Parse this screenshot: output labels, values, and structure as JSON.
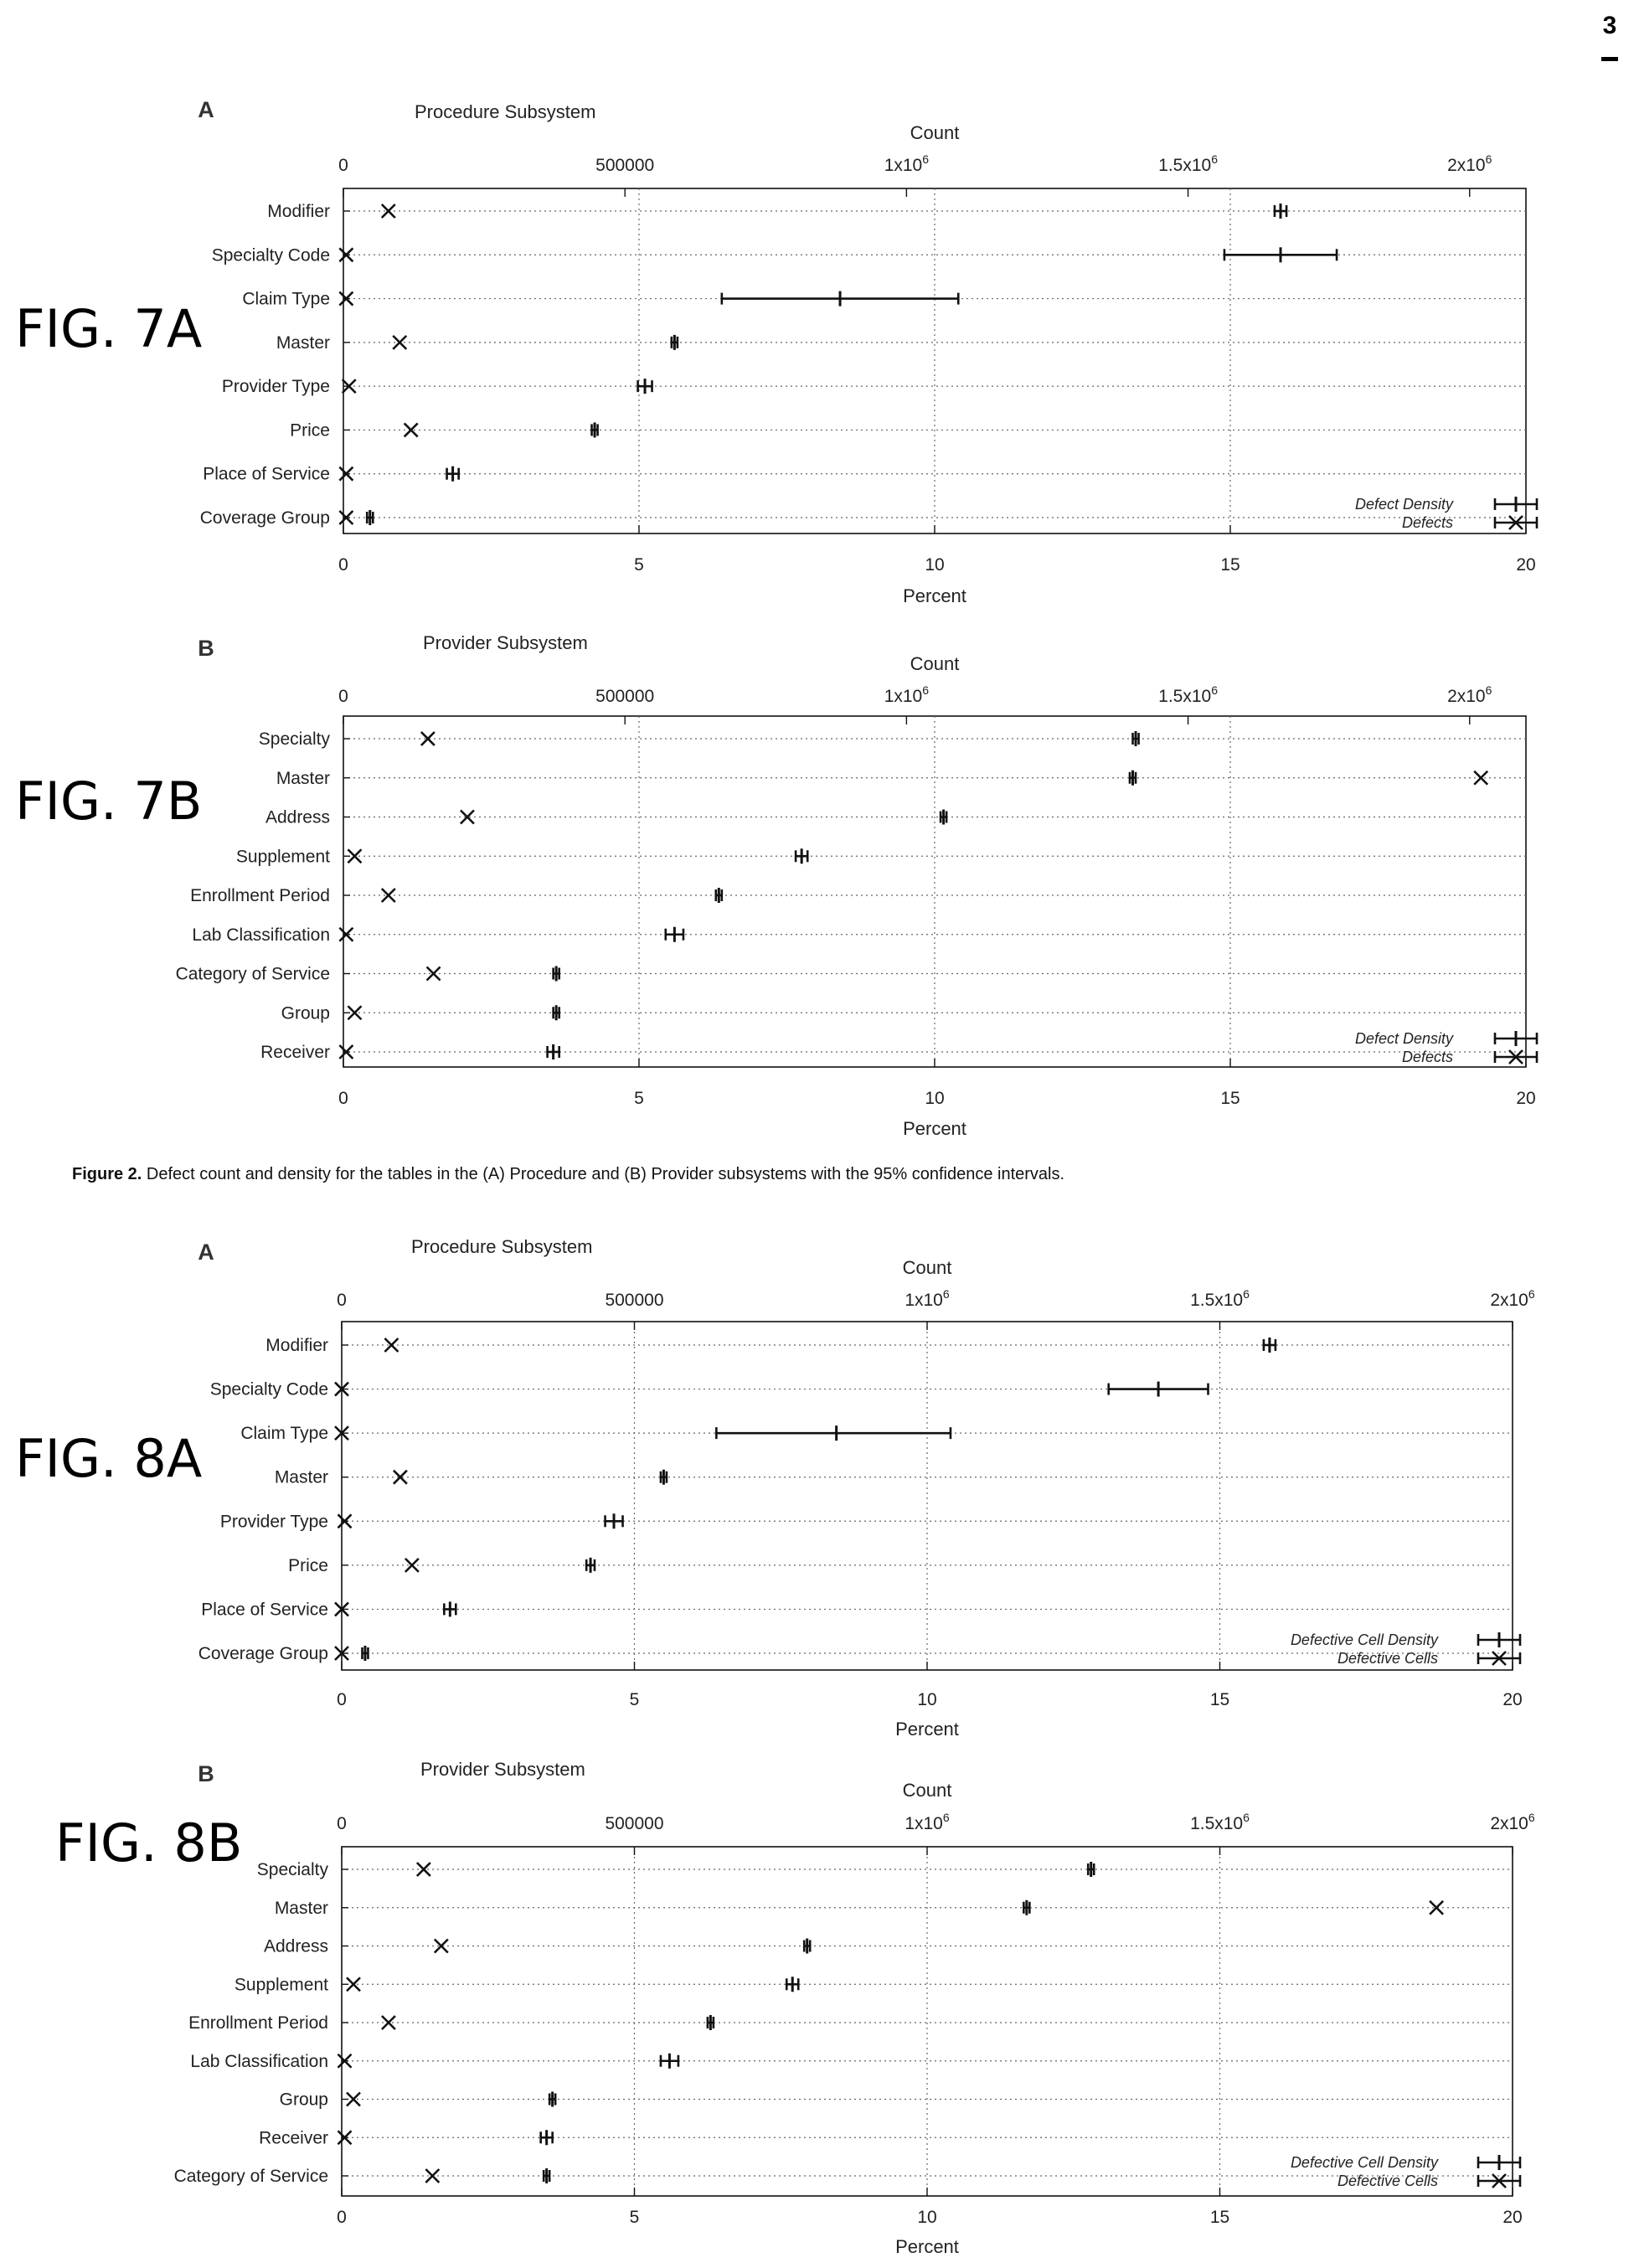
{
  "page": {
    "number": "3"
  },
  "caption": {
    "label": "Figure 2.",
    "text": " Defect count and density for the tables in the (A) Procedure and (B) Provider subsystems with the 95% confidence intervals."
  },
  "chart_data": [
    {
      "type": "scatter",
      "fig_label": "FIG. 7A",
      "panel_letter": "A",
      "title": "Procedure Subsystem",
      "x2label": "Count",
      "xlabel": "Percent",
      "xlim": [
        0,
        20
      ],
      "x2lim": [
        0,
        2100000
      ],
      "xticks": [
        0,
        5,
        10,
        15,
        20
      ],
      "x2ticks": [
        "0",
        "500000",
        "1x10^6",
        "1.5x10^6",
        "2x10^6"
      ],
      "x2tick_values": [
        0,
        500000,
        1000000,
        1500000,
        2000000
      ],
      "grid": true,
      "legend": {
        "position": "bottom-right",
        "entries": [
          "Defect Density",
          "Defects"
        ]
      },
      "categories": [
        "Modifier",
        "Specialty Code",
        "Claim Type",
        "Master",
        "Provider Type",
        "Price",
        "Place of Service",
        "Coverage Group"
      ],
      "series": [
        {
          "name": "Defect Density",
          "marker": "interval",
          "values": [
            15.85,
            15.85,
            8.4,
            5.6,
            5.1,
            4.25,
            1.85,
            0.45
          ],
          "ci_low": [
            15.75,
            14.9,
            6.4,
            5.55,
            4.98,
            4.2,
            1.75,
            0.4
          ],
          "ci_high": [
            15.95,
            16.8,
            10.4,
            5.65,
            5.22,
            4.3,
            1.95,
            0.5
          ]
        },
        {
          "name": "Defects",
          "marker": "x",
          "values": [
            80000,
            5000,
            5000,
            100000,
            10000,
            120000,
            5000,
            5000
          ]
        }
      ]
    },
    {
      "type": "scatter",
      "fig_label": "FIG. 7B",
      "panel_letter": "B",
      "title": "Provider Subsystem",
      "x2label": "Count",
      "xlabel": "Percent",
      "xlim": [
        0,
        20
      ],
      "x2lim": [
        0,
        2100000
      ],
      "xticks": [
        0,
        5,
        10,
        15,
        20
      ],
      "x2ticks": [
        "0",
        "500000",
        "1x10^6",
        "1.5x10^6",
        "2x10^6"
      ],
      "x2tick_values": [
        0,
        500000,
        1000000,
        1500000,
        2000000
      ],
      "grid": true,
      "legend": {
        "position": "bottom-right",
        "entries": [
          "Defect Density",
          "Defects"
        ]
      },
      "categories": [
        "Specialty",
        "Master",
        "Address",
        "Supplement",
        "Enrollment Period",
        "Lab Classification",
        "Category of Service",
        "Group",
        "Receiver"
      ],
      "series": [
        {
          "name": "Defect Density",
          "marker": "interval",
          "values": [
            13.4,
            13.35,
            10.15,
            7.75,
            6.35,
            5.6,
            3.6,
            3.6,
            3.55
          ],
          "ci_low": [
            13.35,
            13.3,
            10.1,
            7.65,
            6.3,
            5.45,
            3.55,
            3.55,
            3.45
          ],
          "ci_high": [
            13.45,
            13.4,
            10.2,
            7.85,
            6.4,
            5.75,
            3.65,
            3.65,
            3.65
          ]
        },
        {
          "name": "Defects",
          "marker": "x",
          "values": [
            150000,
            2020000,
            220000,
            20000,
            80000,
            5000,
            160000,
            20000,
            5000
          ]
        }
      ]
    },
    {
      "type": "scatter",
      "fig_label": "FIG. 8A",
      "panel_letter": "A",
      "title": "Procedure Subsystem",
      "x2label": "Count",
      "xlabel": "Percent",
      "xlim": [
        0,
        20
      ],
      "x2lim": [
        0,
        2000000
      ],
      "xticks": [
        0,
        5,
        10,
        15,
        20
      ],
      "x2ticks": [
        "0",
        "500000",
        "1x10^6",
        "1.5x10^6",
        "2x10^6"
      ],
      "x2tick_values": [
        0,
        500000,
        1000000,
        1500000,
        2000000
      ],
      "grid": true,
      "legend": {
        "position": "bottom-right",
        "entries": [
          "Defective Cell Density",
          "Defective Cells"
        ]
      },
      "categories": [
        "Modifier",
        "Specialty Code",
        "Claim Type",
        "Master",
        "Provider Type",
        "Price",
        "Place of Service",
        "Coverage Group"
      ],
      "series": [
        {
          "name": "Defective Cell Density",
          "marker": "interval",
          "values": [
            15.85,
            13.95,
            8.45,
            5.5,
            4.65,
            4.25,
            1.85,
            0.4
          ],
          "ci_low": [
            15.75,
            13.1,
            6.4,
            5.45,
            4.5,
            4.18,
            1.75,
            0.35
          ],
          "ci_high": [
            15.95,
            14.8,
            10.4,
            5.55,
            4.8,
            4.32,
            1.95,
            0.45
          ]
        },
        {
          "name": "Defective Cells",
          "marker": "x",
          "values": [
            85000,
            0,
            0,
            100000,
            5000,
            120000,
            0,
            0
          ]
        }
      ]
    },
    {
      "type": "scatter",
      "fig_label": "FIG. 8B",
      "panel_letter": "B",
      "title": "Provider Subsystem",
      "x2label": "Count",
      "xlabel": "Percent",
      "xlim": [
        0,
        20
      ],
      "x2lim": [
        0,
        2000000
      ],
      "xticks": [
        0,
        5,
        10,
        15,
        20
      ],
      "x2ticks": [
        "0",
        "500000",
        "1x10^6",
        "1.5x10^6",
        "2x10^6"
      ],
      "x2tick_values": [
        0,
        500000,
        1000000,
        1500000,
        2000000
      ],
      "grid": true,
      "legend": {
        "position": "bottom-right",
        "entries": [
          "Defective Cell Density",
          "Defective Cells"
        ]
      },
      "categories": [
        "Specialty",
        "Master",
        "Address",
        "Supplement",
        "Enrollment Period",
        "Lab Classification",
        "Group",
        "Receiver",
        "Category of Service"
      ],
      "series": [
        {
          "name": "Defective Cell Density",
          "marker": "interval",
          "values": [
            12.8,
            11.7,
            7.95,
            7.7,
            6.3,
            5.6,
            3.6,
            3.5,
            3.5
          ],
          "ci_low": [
            12.75,
            11.65,
            7.9,
            7.6,
            6.25,
            5.45,
            3.55,
            3.4,
            3.45
          ],
          "ci_high": [
            12.85,
            11.75,
            8.0,
            7.8,
            6.35,
            5.75,
            3.65,
            3.6,
            3.55
          ]
        },
        {
          "name": "Defective Cells",
          "marker": "x",
          "values": [
            140000,
            1870000,
            170000,
            20000,
            80000,
            5000,
            20000,
            5000,
            155000
          ]
        }
      ]
    }
  ]
}
